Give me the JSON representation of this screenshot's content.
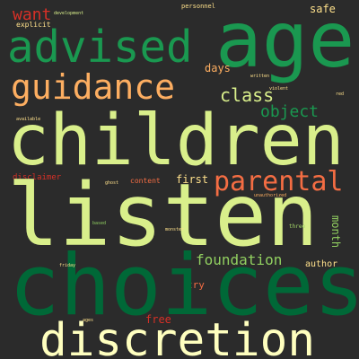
{
  "background": "#2b2b2b",
  "words": [
    {
      "text": "want",
      "color": "#d73027"
    },
    {
      "text": "advised",
      "color": "#1a9850"
    },
    {
      "text": "age",
      "color": "#1a9850"
    },
    {
      "text": "guidance",
      "color": "#fdae61"
    },
    {
      "text": "class",
      "color": "#d9ef8b"
    },
    {
      "text": "object",
      "color": "#1a9850"
    },
    {
      "text": "days",
      "color": "#fdae61"
    },
    {
      "text": "safe",
      "color": "#fee08b"
    },
    {
      "text": "explicit",
      "color": "#fee08b"
    },
    {
      "text": "personnel",
      "color": "#fee08b"
    },
    {
      "text": "children",
      "color": "#d9ef8b"
    },
    {
      "text": "parental",
      "color": "#f46d43"
    },
    {
      "text": "disclaimer",
      "color": "#d73027"
    },
    {
      "text": "content",
      "color": "#f46d43"
    },
    {
      "text": "first",
      "color": "#fee08b"
    },
    {
      "text": "listen",
      "color": "#d9ef8b"
    },
    {
      "text": "month",
      "color": "#91cf60"
    },
    {
      "text": "foundation",
      "color": "#91cf60"
    },
    {
      "text": "author",
      "color": "#fee08b"
    },
    {
      "text": "try",
      "color": "#f46d43"
    },
    {
      "text": "choices",
      "color": "#006837"
    },
    {
      "text": "free",
      "color": "#d73027"
    },
    {
      "text": "discretion",
      "color": "#ffffbf"
    },
    {
      "text": "three",
      "color": "#a6d96a"
    },
    {
      "text": "based",
      "color": "#91cf60"
    },
    {
      "text": "unauthorized",
      "color": "#fdae61"
    },
    {
      "text": "available",
      "color": "#fee08b"
    },
    {
      "text": "development",
      "color": "#d9ef8b"
    },
    {
      "text": "ages",
      "color": "#fee08b"
    },
    {
      "text": "friday",
      "color": "#fee08b"
    },
    {
      "text": "violent",
      "color": "#fee08b"
    },
    {
      "text": "written",
      "color": "#fee08b"
    },
    {
      "text": "red",
      "color": "#fee08b"
    },
    {
      "text": "ghost",
      "color": "#fee08b"
    },
    {
      "text": "monster",
      "color": "#fee08b"
    }
  ]
}
